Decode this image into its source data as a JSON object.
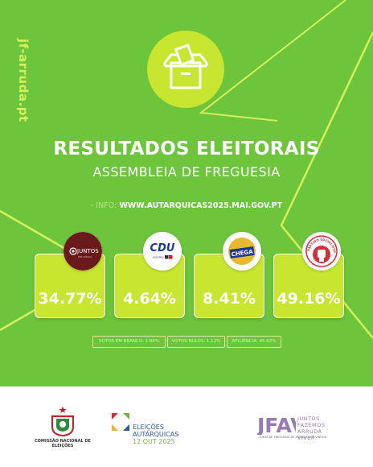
{
  "header": {
    "side_url": "jf-arruda.pt",
    "title": "RESULTADOS ELEITORAIS",
    "subtitle": "ASSEMBLEIA DE FREGUESIA",
    "info_prefix": "- INFO:",
    "info_url": "WWW.AUTARQUICAS2025.MAI.GOV.PT"
  },
  "results": [
    {
      "party": "JUNTOS",
      "party_sub": "POR ARRUDA",
      "percent": "34.77%",
      "icon": "juntos-logo"
    },
    {
      "party": "CDU",
      "party_sub": "PCP-PEV",
      "percent": "4.64%",
      "icon": "cdu-logo"
    },
    {
      "party": "CHEGA",
      "party_sub": "",
      "percent": "8.41%",
      "icon": "chega-logo"
    },
    {
      "party": "PARTIDO SOCIALISTA",
      "party_sub": "",
      "percent": "49.16%",
      "icon": "ps-fist-logo"
    }
  ],
  "stats": {
    "blank": "VOTOS EM BRANCO: 1.86%",
    "null": "VOTOS NULOS: 1.12%",
    "turnout": "AFLUÊNCIA: 45.63%"
  },
  "footer": {
    "cne_label": "COMISSÃO NACIONAL DE ELEIÇÕES",
    "elections_line1": "ELEIÇÕES",
    "elections_line2": "AUTÁRQUICAS",
    "elections_date": "12 OUT 2025",
    "jfav_logo": "JFAV",
    "jfav_line1": "JUNTOS",
    "jfav_line2": "FAZEMOS",
    "jfav_line3": "ARRUDA",
    "jfav_line4": "VIVER.",
    "jfav_small": "JUNTA DE FREGUESIA DE ARRUDA DOS VINHOS"
  },
  "colors": {
    "background": "#6cc53a",
    "accent": "#c8e52f",
    "text": "#ffffff"
  }
}
